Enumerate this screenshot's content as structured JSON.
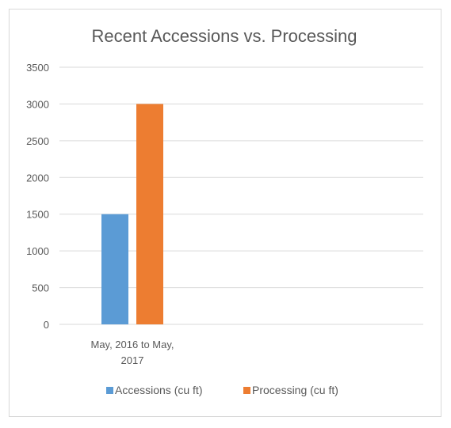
{
  "chart_data": {
    "type": "bar",
    "title": "Recent Accessions vs. Processing",
    "categories": [
      "May, 2016 to May, 2017"
    ],
    "category_label_lines": [
      "May, 2016 to May,",
      "2017"
    ],
    "series": [
      {
        "name": "Accessions (cu ft)",
        "values": [
          1500
        ],
        "color": "#5b9bd5"
      },
      {
        "name": "Processing (cu ft)",
        "values": [
          3000
        ],
        "color": "#ed7d31"
      }
    ],
    "yticks": [
      "0",
      "500",
      "1000",
      "1500",
      "2000",
      "2500",
      "3000",
      "3500"
    ],
    "ylim": [
      0,
      3500
    ],
    "grid": true,
    "legend": "bottom",
    "xlabel": "",
    "ylabel": ""
  }
}
